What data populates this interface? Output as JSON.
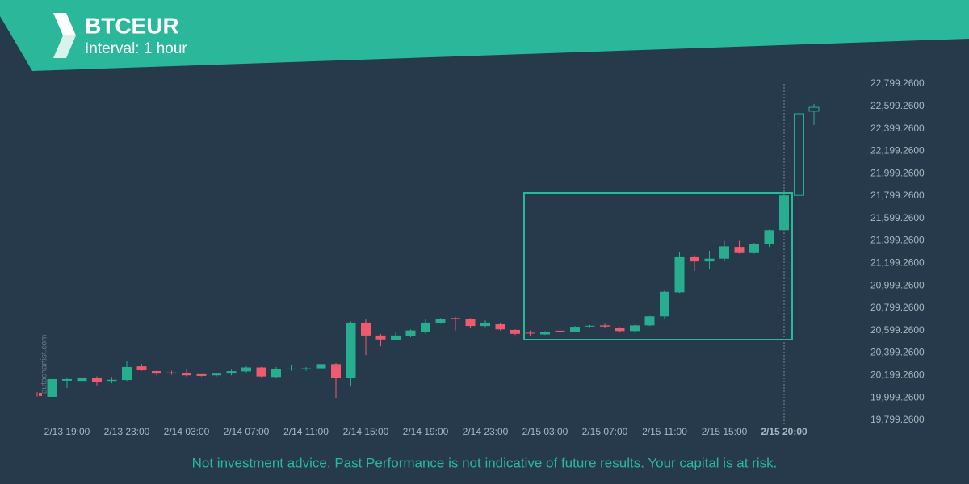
{
  "header": {
    "title": "BTCEUR",
    "subtitle": "Interval: 1 hour"
  },
  "footer": "Not investment advice. Past Performance is not indicative of future results. Your capital is at risk.",
  "watermark": "autochartist.com",
  "chart_data": {
    "type": "candlestick",
    "up_color": "#27ae8f",
    "down_color": "#ef5a6f",
    "categories": [
      null,
      null,
      "2/13 19:00",
      null,
      null,
      null,
      "2/13 23:00",
      null,
      null,
      null,
      "2/14 03:00",
      null,
      null,
      null,
      "2/14 07:00",
      null,
      null,
      null,
      "2/14 11:00",
      null,
      null,
      null,
      "2/14 15:00",
      null,
      null,
      null,
      "2/14 19:00",
      null,
      null,
      null,
      "2/14 23:00",
      null,
      null,
      null,
      "2/15 03:00",
      null,
      null,
      null,
      "2/15 07:00",
      null,
      null,
      null,
      "2/15 11:00",
      null,
      null,
      null,
      "2/15 15:00",
      null,
      null,
      null,
      "2/15 20:00",
      null,
      null
    ],
    "candles": [
      {
        "open": 20044,
        "high": 20050,
        "low": 20010,
        "close": 20015
      },
      {
        "open": 20008,
        "high": 20170,
        "low": 20000,
        "close": 20166
      },
      {
        "open": 20152,
        "high": 20180,
        "low": 20087,
        "close": 20166
      },
      {
        "open": 20150,
        "high": 20190,
        "low": 20110,
        "close": 20180
      },
      {
        "open": 20180,
        "high": 20190,
        "low": 20110,
        "close": 20140
      },
      {
        "open": 20150,
        "high": 20185,
        "low": 20130,
        "close": 20160
      },
      {
        "open": 20158,
        "high": 20330,
        "low": 20150,
        "close": 20274
      },
      {
        "open": 20280,
        "high": 20300,
        "low": 20240,
        "close": 20245
      },
      {
        "open": 20238,
        "high": 20240,
        "low": 20200,
        "close": 20215
      },
      {
        "open": 20225,
        "high": 20240,
        "low": 20205,
        "close": 20220
      },
      {
        "open": 20222,
        "high": 20250,
        "low": 20190,
        "close": 20200
      },
      {
        "open": 20210,
        "high": 20210,
        "low": 20190,
        "close": 20195
      },
      {
        "open": 20200,
        "high": 20220,
        "low": 20190,
        "close": 20215
      },
      {
        "open": 20215,
        "high": 20250,
        "low": 20200,
        "close": 20237
      },
      {
        "open": 20235,
        "high": 20280,
        "low": 20225,
        "close": 20270
      },
      {
        "open": 20270,
        "high": 20275,
        "low": 20185,
        "close": 20190
      },
      {
        "open": 20185,
        "high": 20275,
        "low": 20180,
        "close": 20255
      },
      {
        "open": 20255,
        "high": 20290,
        "low": 20240,
        "close": 20260
      },
      {
        "open": 20258,
        "high": 20275,
        "low": 20240,
        "close": 20262
      },
      {
        "open": 20262,
        "high": 20310,
        "low": 20250,
        "close": 20300
      },
      {
        "open": 20300,
        "high": 20310,
        "low": 20000,
        "close": 20180
      },
      {
        "open": 20180,
        "high": 20680,
        "low": 20100,
        "close": 20670
      },
      {
        "open": 20670,
        "high": 20700,
        "low": 20380,
        "close": 20555
      },
      {
        "open": 20555,
        "high": 20570,
        "low": 20460,
        "close": 20520
      },
      {
        "open": 20515,
        "high": 20580,
        "low": 20510,
        "close": 20555
      },
      {
        "open": 20550,
        "high": 20610,
        "low": 20540,
        "close": 20600
      },
      {
        "open": 20590,
        "high": 20700,
        "low": 20570,
        "close": 20670
      },
      {
        "open": 20665,
        "high": 20710,
        "low": 20660,
        "close": 20705
      },
      {
        "open": 20710,
        "high": 20720,
        "low": 20600,
        "close": 20700
      },
      {
        "open": 20700,
        "high": 20710,
        "low": 20620,
        "close": 20640
      },
      {
        "open": 20640,
        "high": 20690,
        "low": 20630,
        "close": 20670
      },
      {
        "open": 20655,
        "high": 20670,
        "low": 20600,
        "close": 20610
      },
      {
        "open": 20605,
        "high": 20610,
        "low": 20560,
        "close": 20570
      },
      {
        "open": 20580,
        "high": 20600,
        "low": 20550,
        "close": 20575
      },
      {
        "open": 20565,
        "high": 20595,
        "low": 20560,
        "close": 20590
      },
      {
        "open": 20598,
        "high": 20610,
        "low": 20580,
        "close": 20590
      },
      {
        "open": 20590,
        "high": 20640,
        "low": 20585,
        "close": 20633
      },
      {
        "open": 20638,
        "high": 20650,
        "low": 20630,
        "close": 20642
      },
      {
        "open": 20645,
        "high": 20660,
        "low": 20620,
        "close": 20635
      },
      {
        "open": 20625,
        "high": 20630,
        "low": 20590,
        "close": 20595
      },
      {
        "open": 20595,
        "high": 20650,
        "low": 20590,
        "close": 20645
      },
      {
        "open": 20645,
        "high": 20730,
        "low": 20640,
        "close": 20725
      },
      {
        "open": 20725,
        "high": 20960,
        "low": 20700,
        "close": 20945
      },
      {
        "open": 20940,
        "high": 21300,
        "low": 20935,
        "close": 21260
      },
      {
        "open": 21260,
        "high": 21270,
        "low": 21130,
        "close": 21215
      },
      {
        "open": 21215,
        "high": 21310,
        "low": 21150,
        "close": 21240
      },
      {
        "open": 21240,
        "high": 21400,
        "low": 21220,
        "close": 21350
      },
      {
        "open": 21345,
        "high": 21400,
        "low": 21285,
        "close": 21290
      },
      {
        "open": 21290,
        "high": 21380,
        "low": 21285,
        "close": 21370
      },
      {
        "open": 21370,
        "high": 21500,
        "low": 21345,
        "close": 21495
      },
      {
        "open": 21495,
        "high": 21810,
        "low": 21490,
        "close": 21805
      },
      {
        "open": 21805,
        "high": 22670,
        "low": 21800,
        "close": 22533
      },
      {
        "open": 22555,
        "high": 22620,
        "low": 22432,
        "close": 22590
      }
    ],
    "ylim": [
      19734,
      22864
    ],
    "yticks": [
      {
        "value": 19799.26,
        "label": "19,799.2600"
      },
      {
        "value": 19999.26,
        "label": "19,999.2600"
      },
      {
        "value": 20199.26,
        "label": "20,199.2600"
      },
      {
        "value": 20399.26,
        "label": "20,399.2600"
      },
      {
        "value": 20599.26,
        "label": "20,599.2600"
      },
      {
        "value": 20799.26,
        "label": "20,799.2600"
      },
      {
        "value": 20999.26,
        "label": "20,999.2600"
      },
      {
        "value": 21199.26,
        "label": "21,199.2600"
      },
      {
        "value": 21399.26,
        "label": "21,399.2600"
      },
      {
        "value": 21599.26,
        "label": "21,599.2600"
      },
      {
        "value": 21799.26,
        "label": "21,799.2600"
      },
      {
        "value": 21999.26,
        "label": "21,999.2600"
      },
      {
        "value": 22199.26,
        "label": "22,199.2600"
      },
      {
        "value": 22399.26,
        "label": "22,399.2600"
      },
      {
        "value": 22599.26,
        "label": "22,599.2600"
      },
      {
        "value": 22799.26,
        "label": "22,799.2600"
      }
    ]
  }
}
